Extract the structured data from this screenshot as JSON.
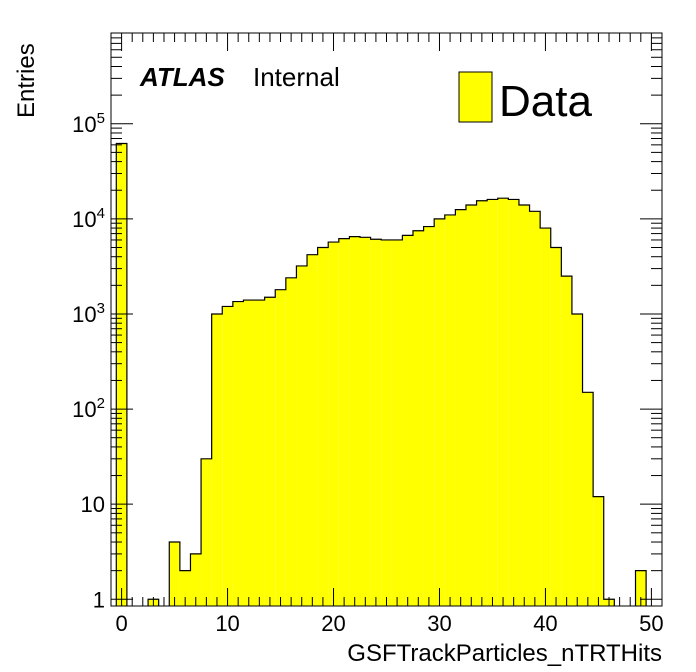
{
  "chart_data": {
    "type": "bar",
    "subtype": "histogram",
    "title": "",
    "xlabel": "GSFTrackParticles_nTRTHits",
    "ylabel": "Entries",
    "y_scale": "log",
    "xlim": [
      -1,
      51
    ],
    "ylim": [
      0.85,
      900000
    ],
    "x_ticks": [
      0,
      10,
      20,
      30,
      40,
      50
    ],
    "y_ticks": [
      {
        "value": 1,
        "label": "1",
        "exp": ""
      },
      {
        "value": 10,
        "label": "10",
        "exp": ""
      },
      {
        "value": 100,
        "label": "10",
        "exp": "2"
      },
      {
        "value": 1000,
        "label": "10",
        "exp": "3"
      },
      {
        "value": 10000,
        "label": "10",
        "exp": "4"
      },
      {
        "value": 100000,
        "label": "10",
        "exp": "5"
      }
    ],
    "bin_width": 1,
    "bin_edges_start": -0.5,
    "fill_color": "#ffff00",
    "line_color": "#000000",
    "series": [
      {
        "name": "Data",
        "values": [
          62000,
          0,
          0,
          1,
          0,
          4,
          2,
          3,
          30,
          1000,
          1200,
          1350,
          1400,
          1400,
          1500,
          1800,
          2400,
          3200,
          4200,
          5000,
          5700,
          6200,
          6500,
          6400,
          6100,
          6000,
          6000,
          6700,
          7500,
          8300,
          10000,
          11000,
          12500,
          14000,
          15500,
          16000,
          16500,
          16000,
          14000,
          12000,
          8000,
          5000,
          2500,
          1000,
          150,
          12,
          1,
          0,
          0,
          2,
          0
        ]
      }
    ],
    "legend": {
      "position": "top-right",
      "entries": [
        "Data"
      ]
    },
    "annotations": {
      "atlas": "ATLAS",
      "status": "Internal"
    }
  }
}
